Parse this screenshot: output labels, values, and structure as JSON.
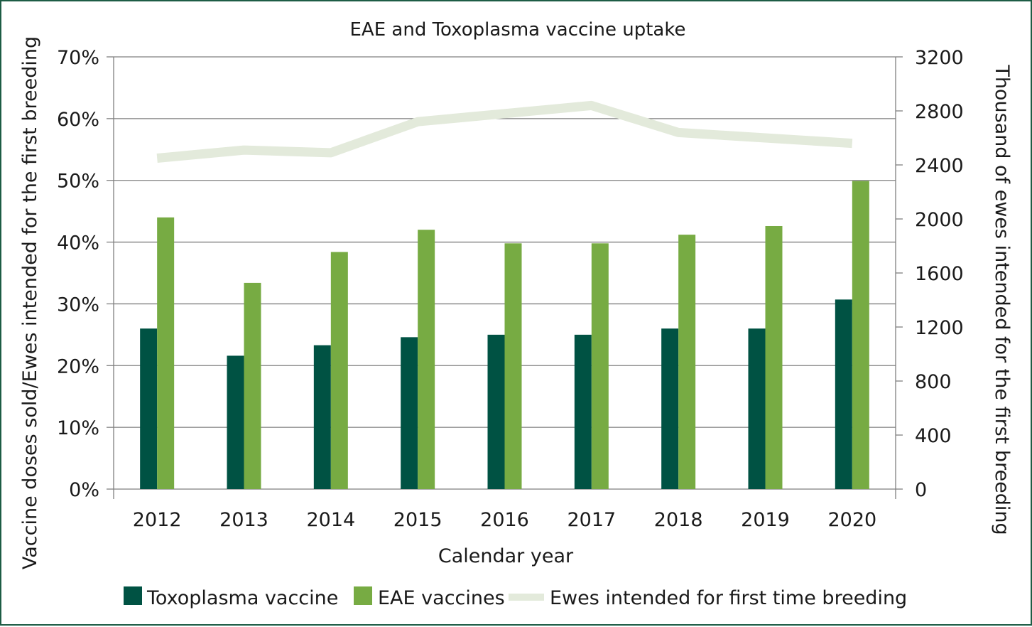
{
  "colors": {
    "frame": "#1d5c45",
    "toxoplasma": "#005243",
    "eae": "#77ab43",
    "ewes": "#e3eadb",
    "gridline": "#7f7f7f",
    "text": "#1a1a1a"
  },
  "chart_data": {
    "type": "bar",
    "title": "EAE and Toxoplasma vaccine uptake",
    "xlabel": "Calendar year",
    "ylabel": "Vaccine doses sold/Ewes intended for the first breeding",
    "y2label": "Thousand of ewes intended for the first breeding",
    "categories": [
      "2012",
      "2013",
      "2014",
      "2015",
      "2016",
      "2017",
      "2018",
      "2019",
      "2020"
    ],
    "ylim": [
      0,
      0.7
    ],
    "y_ticks": [
      "0%",
      "10%",
      "20%",
      "30%",
      "40%",
      "50%",
      "60%",
      "70%"
    ],
    "y2lim": [
      0,
      3200
    ],
    "y2_ticks": [
      "0",
      "400",
      "800",
      "1200",
      "1600",
      "2000",
      "2400",
      "2800",
      "3200"
    ],
    "grid": true,
    "legend_position": "bottom",
    "series": [
      {
        "name": "Toxoplasma vaccine",
        "type": "bar",
        "axis": "left",
        "color": "#005243",
        "values": [
          0.26,
          0.216,
          0.233,
          0.246,
          0.25,
          0.25,
          0.26,
          0.26,
          0.307
        ]
      },
      {
        "name": "EAE vaccines",
        "type": "bar",
        "axis": "left",
        "color": "#77ab43",
        "values": [
          0.44,
          0.334,
          0.384,
          0.42,
          0.398,
          0.398,
          0.412,
          0.426,
          0.499
        ]
      },
      {
        "name": "Ewes intended for first time breeding",
        "type": "line",
        "axis": "right",
        "color": "#e3eadb",
        "values": [
          2450,
          2510,
          2490,
          2720,
          2780,
          2840,
          2640,
          2600,
          2560
        ]
      }
    ]
  }
}
